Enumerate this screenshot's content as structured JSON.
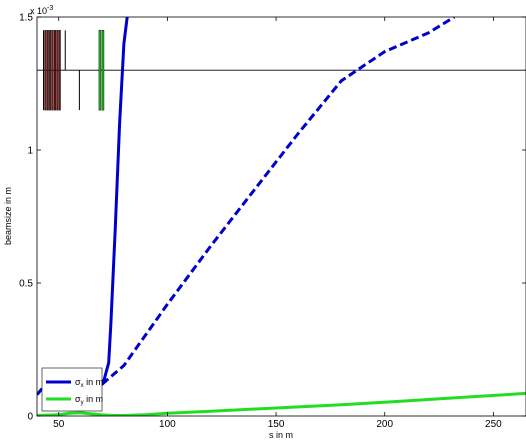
{
  "chart_data": {
    "type": "line",
    "xlabel": "s in m",
    "ylabel": "beamsize in m",
    "exponent_label": "x 10",
    "exponent_power": "-3",
    "xlim": [
      40,
      265
    ],
    "ylim": [
      0,
      1.5
    ],
    "xticks": [
      50,
      100,
      150,
      200,
      250
    ],
    "xtick_labels": [
      "50",
      "100",
      "150",
      "200",
      "250"
    ],
    "yticks": [
      0,
      0.5,
      1,
      1.5
    ],
    "ytick_labels": [
      "0",
      "0.5",
      "1",
      "1.5"
    ],
    "grid": false,
    "legend_position": "bottom-left",
    "colors": {
      "sigma_x": "#0000cc",
      "sigma_y": "#22dd22",
      "magnet_dipole": "#8a1a1a",
      "magnet_quad": "#22cc22",
      "element_line": "#000000",
      "reference_line": "#000000"
    },
    "series": [
      {
        "name_main": "σ",
        "name_sub": "x",
        "name_rest": " in m",
        "style": "solid",
        "color": "#0000cc",
        "x": [
          40,
          41,
          42,
          44,
          46,
          48,
          50,
          55,
          60,
          65,
          68,
          70,
          71,
          72,
          73,
          74,
          76,
          78,
          80,
          81.5
        ],
        "y": [
          8e-05,
          9e-05,
          0.0001,
          0.0001,
          0.0001,
          0.0001,
          0.0001,
          0.0001,
          0.0001,
          0.0001,
          0.00011,
          0.00012,
          0.00014,
          0.00017,
          0.0002,
          0.00035,
          0.0007,
          0.0011,
          0.0014,
          0.0015
        ]
      },
      {
        "name_main": "",
        "name_sub": "",
        "name_rest": "",
        "style": "dashed",
        "color": "#0000cc",
        "x": [
          70,
          80,
          100,
          120,
          140,
          160,
          180,
          200,
          220,
          232
        ],
        "y": [
          0.00012,
          0.00019,
          0.00042,
          0.00064,
          0.00085,
          0.00106,
          0.00126,
          0.00137,
          0.00144,
          0.0015
        ]
      },
      {
        "name_main": "σ",
        "name_sub": "y",
        "name_rest": " in m",
        "style": "solid",
        "color": "#22dd22",
        "x": [
          40,
          50,
          55,
          60,
          65,
          70,
          75,
          80,
          90,
          100,
          120,
          150,
          180,
          200,
          220,
          240,
          265
        ],
        "y": [
          2e-06,
          5e-06,
          1e-05,
          1.2e-05,
          8e-06,
          4e-06,
          2e-06,
          2e-06,
          5e-06,
          1e-05,
          1.8e-05,
          3e-05,
          4.2e-05,
          5.2e-05,
          6.2e-05,
          7.2e-05,
          8.5e-05
        ]
      }
    ],
    "reference_line_y": 0.0013,
    "magnets": [
      {
        "kind": "dipole",
        "x0": 43.5,
        "x1": 44.2,
        "y0": 0.00115,
        "y1": 0.00145
      },
      {
        "kind": "dipole",
        "x0": 44.6,
        "x1": 45.3,
        "y0": 0.00115,
        "y1": 0.00145
      },
      {
        "kind": "dipole",
        "x0": 45.7,
        "x1": 46.4,
        "y0": 0.00115,
        "y1": 0.00145
      },
      {
        "kind": "dipole",
        "x0": 46.8,
        "x1": 47.5,
        "y0": 0.00115,
        "y1": 0.00145
      },
      {
        "kind": "dipole",
        "x0": 47.9,
        "x1": 48.6,
        "y0": 0.00115,
        "y1": 0.00145
      },
      {
        "kind": "dipole",
        "x0": 49.0,
        "x1": 49.7,
        "y0": 0.00115,
        "y1": 0.00145
      },
      {
        "kind": "dipole",
        "x0": 50.1,
        "x1": 50.8,
        "y0": 0.00115,
        "y1": 0.00145
      },
      {
        "kind": "quad",
        "x0": 68.5,
        "x1": 69.4,
        "y0": 0.00115,
        "y1": 0.00145
      },
      {
        "kind": "quad",
        "x0": 69.9,
        "x1": 70.8,
        "y0": 0.00115,
        "y1": 0.00145
      }
    ],
    "element_lines": [
      {
        "x": 38.8,
        "y0": 0.00115,
        "y1": 0.00145
      },
      {
        "x": 43.0,
        "y0": 0.00115,
        "y1": 0.00145
      },
      {
        "x": 53.0,
        "y0": 0.0013,
        "y1": 0.00145
      },
      {
        "x": 59.5,
        "y0": 0.00115,
        "y1": 0.0013
      }
    ]
  }
}
